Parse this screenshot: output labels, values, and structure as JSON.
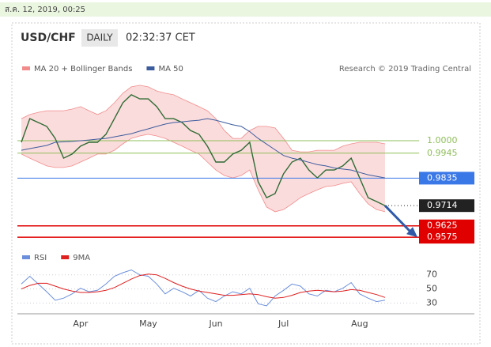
{
  "date": "ส.ค. 12, 2019, 00:25",
  "header": {
    "pair": "USD/CHF",
    "timeframe": "DAILY",
    "time": "02:32:37 CET",
    "source": "Research © 2019 Trading Central"
  },
  "chart_data": {
    "type": "line",
    "categories": [
      null,
      null,
      null,
      null,
      null,
      null,
      null,
      "Apr",
      null,
      null,
      null,
      null,
      null,
      null,
      null,
      "May",
      null,
      null,
      null,
      null,
      null,
      null,
      null,
      "Jun",
      null,
      null,
      null,
      null,
      null,
      null,
      null,
      "Jul",
      null,
      null,
      null,
      null,
      null,
      null,
      null,
      null,
      "Aug",
      null,
      null,
      null
    ],
    "ylim": [
      0.9558,
      1.0254
    ],
    "bands": {
      "name": "MA 20 + Bollinger Bands",
      "color": "#f28b8b",
      "upper": [
        1.0097,
        1.0115,
        1.0125,
        1.0132,
        1.0132,
        1.0132,
        1.0139,
        1.015,
        1.0132,
        1.0115,
        1.0132,
        1.0167,
        1.0209,
        1.0237,
        1.0244,
        1.0237,
        1.0219,
        1.0209,
        1.0202,
        1.0184,
        1.0167,
        1.015,
        1.0132,
        1.0097,
        1.0045,
        1.001,
        1.001,
        1.0045,
        1.0063,
        1.0063,
        1.0056,
        1.001,
        0.9958,
        0.9951,
        0.9951,
        0.9958,
        0.9958,
        0.9958,
        0.9976,
        0.9986,
        0.9993,
        0.9993,
        0.9993,
        0.9986
      ],
      "lower": [
        0.9941,
        0.9923,
        0.9906,
        0.9889,
        0.9882,
        0.9882,
        0.9889,
        0.9906,
        0.9923,
        0.9941,
        0.9941,
        0.9958,
        0.9986,
        1.001,
        1.0021,
        1.0028,
        1.0021,
        1.001,
        0.9993,
        0.9976,
        0.9958,
        0.9941,
        0.9906,
        0.9871,
        0.9847,
        0.9836,
        0.9847,
        0.9871,
        0.9784,
        0.9708,
        0.9687,
        0.9697,
        0.9722,
        0.9749,
        0.9767,
        0.9784,
        0.9798,
        0.9802,
        0.9812,
        0.9819,
        0.9767,
        0.9722,
        0.9697,
        0.9687
      ]
    },
    "series": [
      {
        "color": "#2e6b34",
        "values": [
          0.9993,
          1.0097,
          1.008,
          1.0063,
          1.001,
          0.9923,
          0.9941,
          0.9976,
          0.9993,
          0.9993,
          1.0028,
          1.0097,
          1.0167,
          1.0202,
          1.0184,
          1.0184,
          1.015,
          1.0097,
          1.0097,
          1.008,
          1.0045,
          1.0028,
          0.9976,
          0.9906,
          0.9906,
          0.9941,
          0.9958,
          0.9993,
          0.9819,
          0.9749,
          0.9767,
          0.9854,
          0.9906,
          0.9923,
          0.9871,
          0.9836,
          0.9871,
          0.9871,
          0.9889,
          0.9923,
          0.9836,
          0.9749,
          0.9732,
          0.9714
        ]
      },
      {
        "name": "MA 50",
        "color": "#3d5c9e",
        "values": [
          0.9958,
          0.9965,
          0.9972,
          0.9979,
          0.9993,
          0.9995,
          0.9997,
          1.0,
          1.0003,
          1.0007,
          1.001,
          1.0017,
          1.0024,
          1.0031,
          1.0042,
          1.0052,
          1.0063,
          1.0073,
          1.008,
          1.0083,
          1.0087,
          1.009,
          1.0097,
          1.009,
          1.008,
          1.007,
          1.0063,
          1.004,
          1.001,
          0.9985,
          0.996,
          0.9935,
          0.9923,
          0.9915,
          0.9905,
          0.9895,
          0.9889,
          0.988,
          0.9875,
          0.9871,
          0.986,
          0.985,
          0.9843,
          0.9836
        ]
      }
    ],
    "levels": [
      {
        "value": 1.0,
        "label": "1.0000",
        "color": "#8fbf5a",
        "boxed": false
      },
      {
        "value": 0.9945,
        "label": "0.9945",
        "color": "#8fbf5a",
        "boxed": false
      },
      {
        "value": 0.9835,
        "label": "0.9835",
        "color": "#3b78e7",
        "boxed": true
      },
      {
        "value": 0.9714,
        "label": "0.9714",
        "color": "#222222",
        "boxed": true,
        "dotted": true
      },
      {
        "value": 0.9625,
        "label": "0.9625",
        "color": "#e00000",
        "boxed": true
      },
      {
        "value": 0.9575,
        "label": "0.9575",
        "color": "#e00000",
        "boxed": true
      }
    ],
    "rsi": {
      "ylim": [
        17,
        82
      ],
      "yticks": [
        30,
        50,
        70
      ],
      "series": [
        {
          "name": "RSI",
          "color": "#6b8fdc",
          "values": [
            57,
            68,
            57,
            46,
            34,
            37,
            43,
            51,
            46,
            48,
            57,
            68,
            73,
            77,
            70,
            68,
            57,
            43,
            51,
            46,
            40,
            48,
            37,
            32,
            40,
            46,
            43,
            51,
            29,
            26,
            40,
            48,
            57,
            54,
            43,
            40,
            48,
            46,
            51,
            59,
            43,
            37,
            32,
            34
          ]
        },
        {
          "name": "9MA",
          "color": "#e01f1f",
          "values": [
            50,
            55,
            58,
            58,
            54,
            50,
            47,
            45,
            45,
            46,
            48,
            52,
            58,
            64,
            69,
            71,
            70,
            65,
            59,
            54,
            50,
            47,
            45,
            43,
            41,
            41,
            42,
            43,
            42,
            39,
            37,
            38,
            41,
            45,
            47,
            48,
            47,
            46,
            47,
            49,
            48,
            45,
            42,
            38
          ]
        }
      ]
    }
  }
}
